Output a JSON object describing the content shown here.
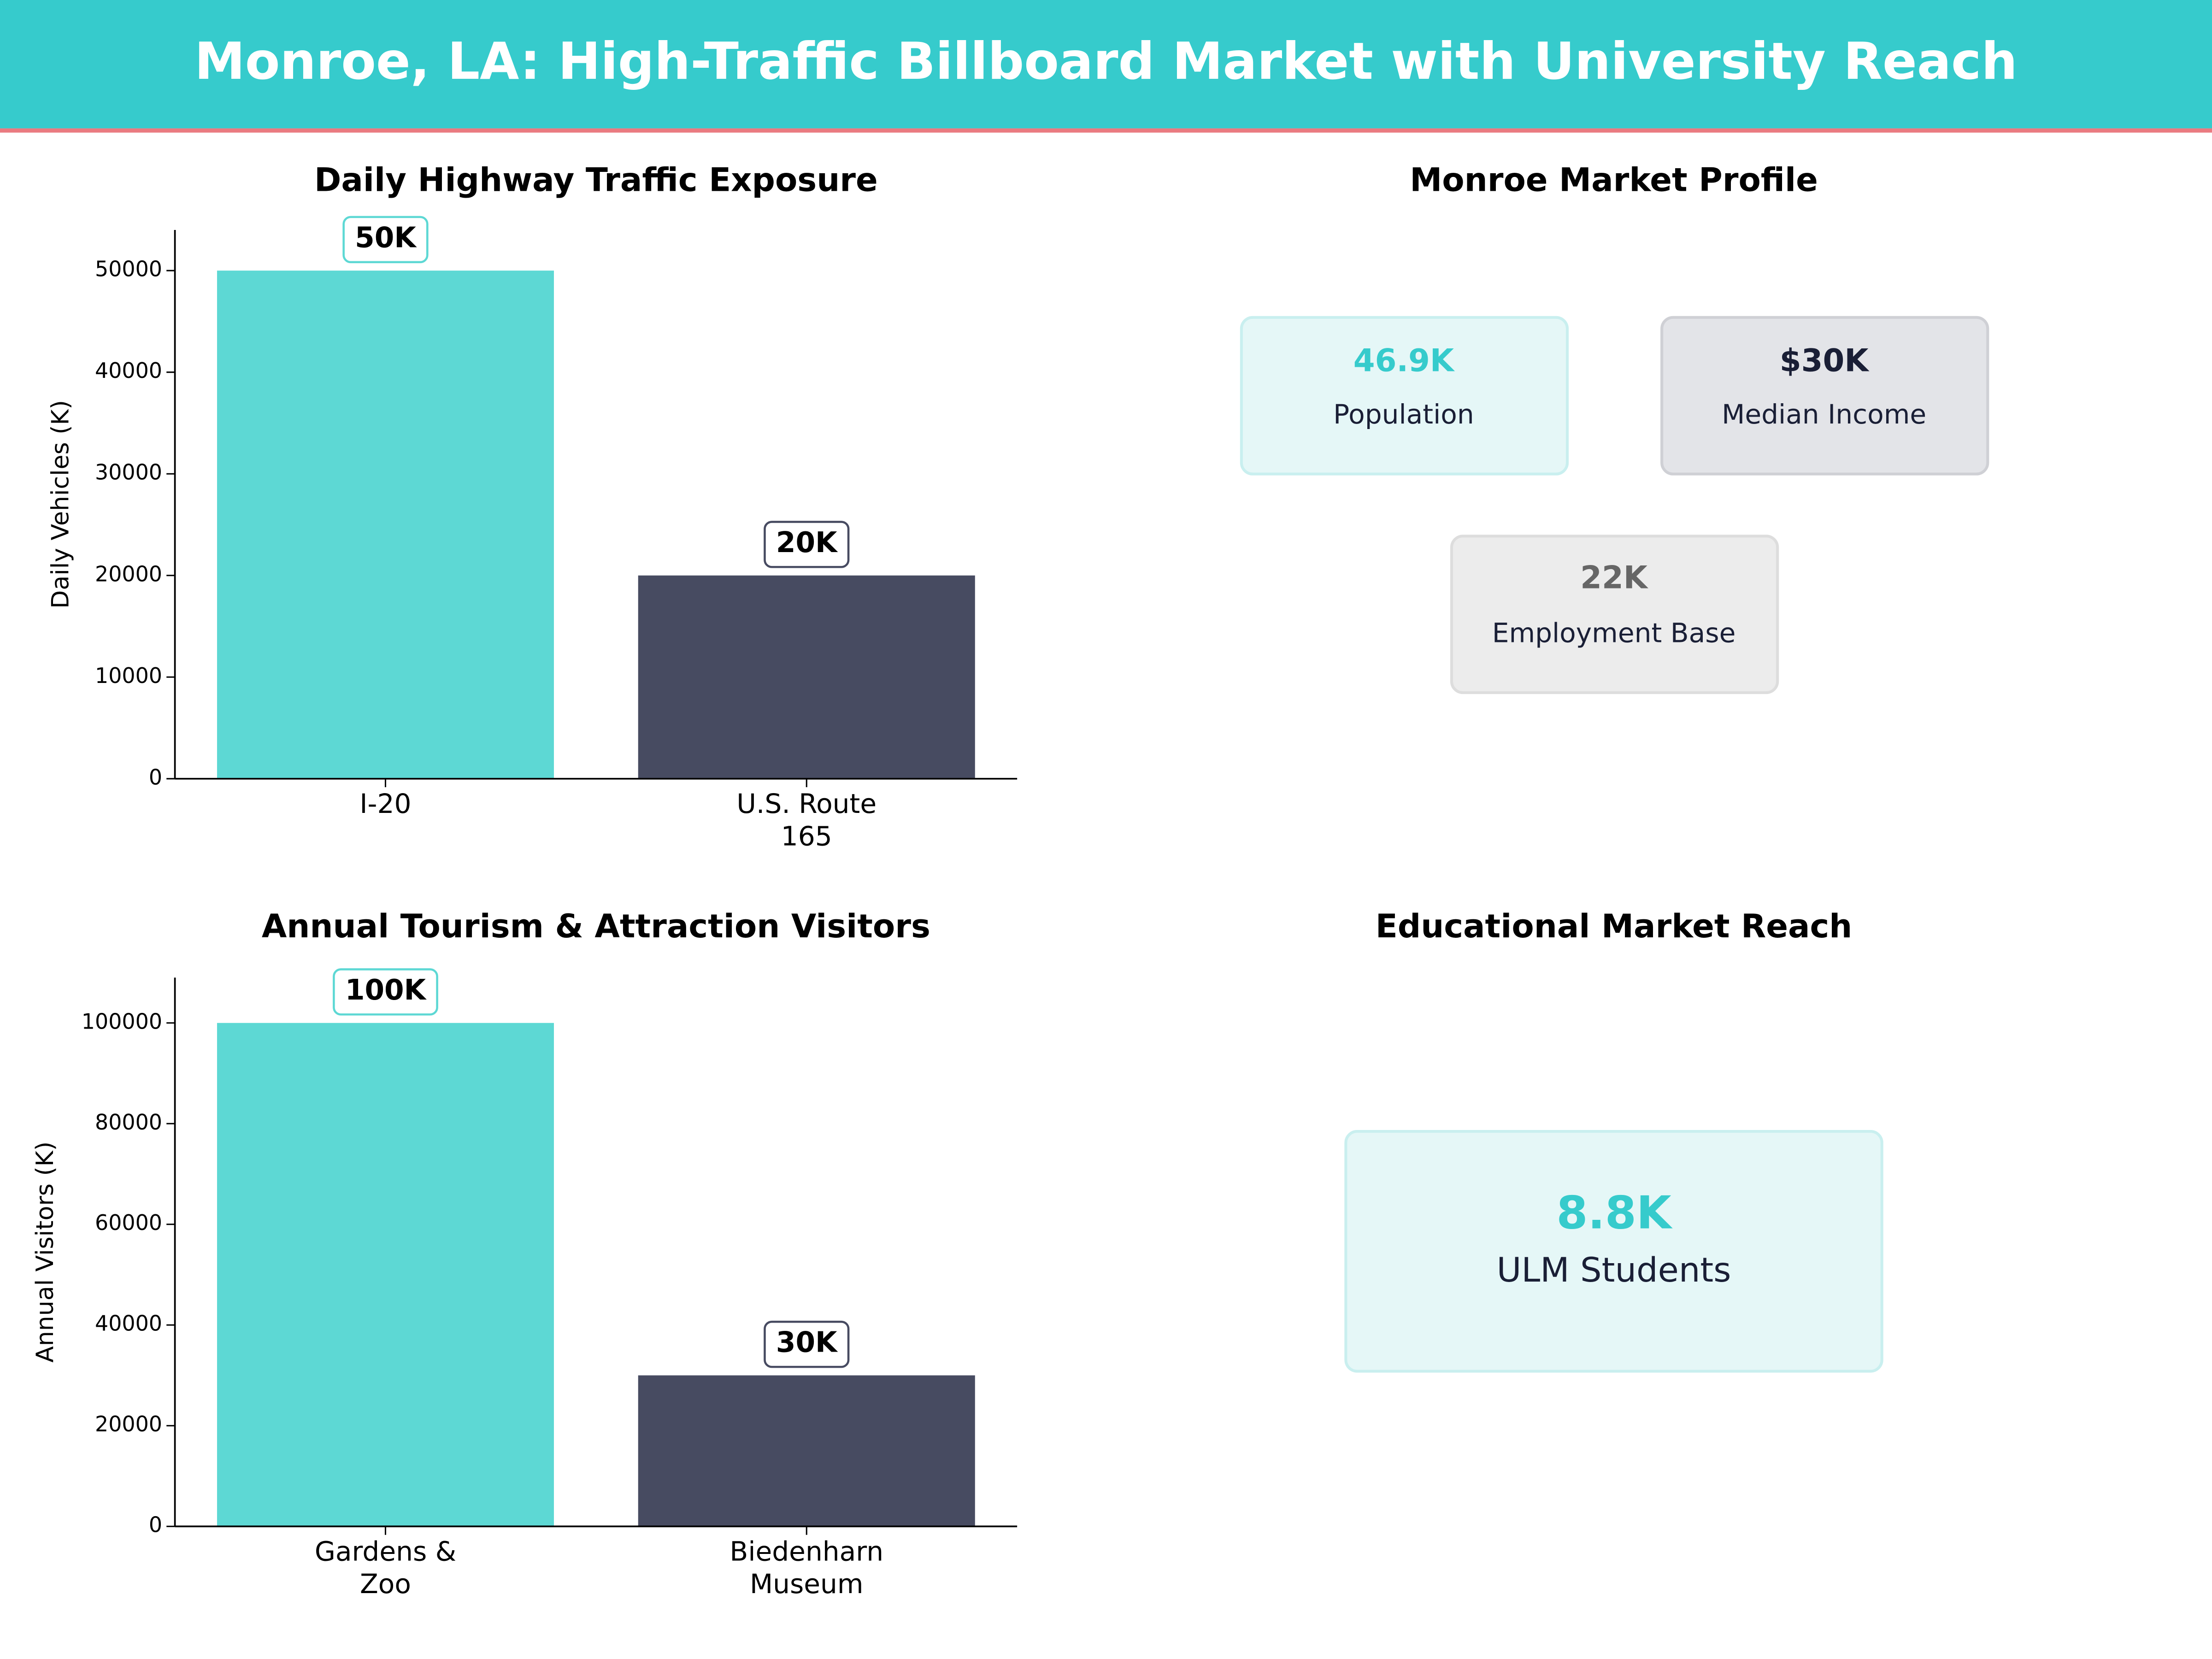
{
  "header": {
    "title": "Monroe, LA: High-Traffic Billboard Market with University Reach"
  },
  "chart_data": [
    {
      "type": "bar",
      "title": "Daily Highway Traffic Exposure",
      "y_label": "Daily Vehicles (K)",
      "categories": [
        "I-20",
        "U.S. Route\n165"
      ],
      "values": [
        50000,
        20000
      ],
      "value_labels": [
        "50K",
        "20K"
      ],
      "colors": [
        "#5dd8d4",
        "#474b61"
      ],
      "ylim": [
        0,
        54000
      ],
      "yticks": [
        0,
        10000,
        20000,
        30000,
        40000,
        50000
      ]
    },
    {
      "type": "bar",
      "title": "Annual Tourism & Attraction Visitors",
      "y_label": "Annual Visitors (K)",
      "categories": [
        "Gardens &\nZoo",
        "Biedenharn\nMuseum"
      ],
      "values": [
        100000,
        30000
      ],
      "value_labels": [
        "100K",
        "30K"
      ],
      "colors": [
        "#5dd8d4",
        "#474b61"
      ],
      "ylim": [
        0,
        109000
      ],
      "yticks": [
        0,
        20000,
        40000,
        60000,
        80000,
        100000
      ]
    }
  ],
  "market_profile": {
    "title": "Monroe Market Profile",
    "cards": [
      {
        "value": "46.9K",
        "label": "Population"
      },
      {
        "value": "$30K",
        "label": "Median Income"
      },
      {
        "value": "22K",
        "label": "Employment Base"
      }
    ]
  },
  "education": {
    "title": "Educational Market Reach",
    "card": {
      "value": "8.8K",
      "label": "ULM Students"
    }
  }
}
